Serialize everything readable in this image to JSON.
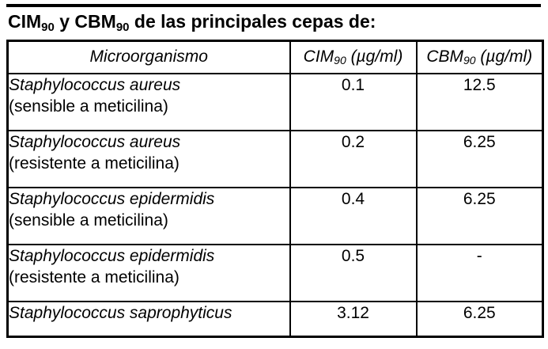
{
  "colors": {
    "text": "#000000",
    "background": "#ffffff",
    "border": "#000000"
  },
  "title": {
    "part1": "CIM",
    "sub1": "90",
    "part2": " y CBM",
    "sub2": "90",
    "part3": " de las principales cepas de:"
  },
  "table": {
    "columns": [
      {
        "label": "Microorganismo"
      },
      {
        "abbr": "CIM",
        "sub": "90",
        "unit": " (µg/ml)"
      },
      {
        "abbr": "CBM",
        "sub": "90",
        "unit": " (µg/ml)"
      }
    ],
    "rows": [
      {
        "species": "Staphylococcus aureus",
        "variant": "(sensible a meticilina)",
        "cim": "0.1",
        "cbm": "12.5"
      },
      {
        "species": "Staphylococcus aureus",
        "variant": "(resistente a meticilina)",
        "cim": "0.2",
        "cbm": "6.25"
      },
      {
        "species": "Staphylococcus epidermidis",
        "variant": "(sensible a meticilina)",
        "cim": "0.4",
        "cbm": "6.25"
      },
      {
        "species": "Staphylococcus epidermidis",
        "variant": "(resistente a meticilina)",
        "cim": "0.5",
        "cbm": "-"
      },
      {
        "species": "Staphylococcus saprophyticus",
        "variant": "",
        "cim": "3.12",
        "cbm": "6.25"
      }
    ]
  }
}
